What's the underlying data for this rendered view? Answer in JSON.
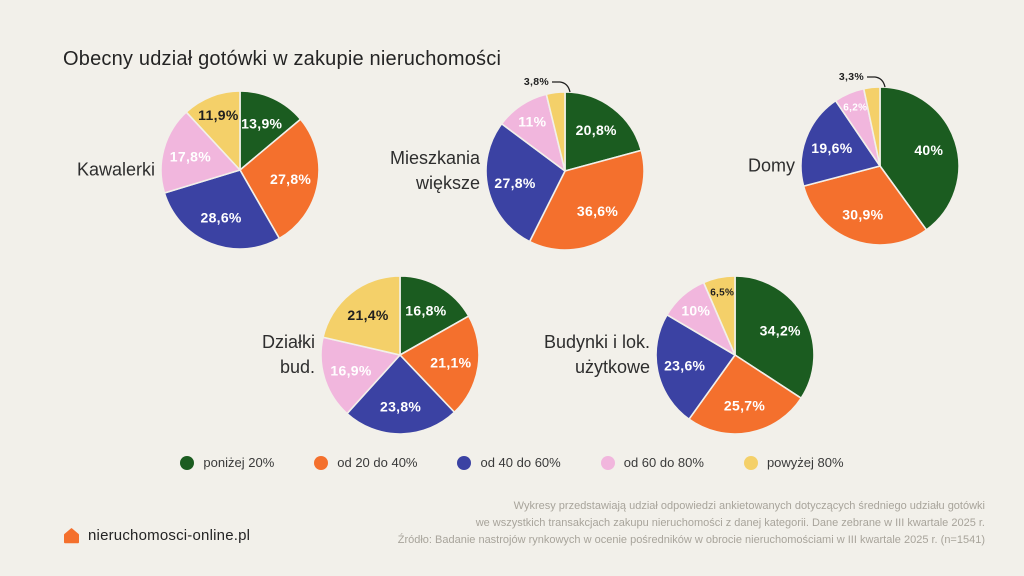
{
  "title": "Obecny udział gotówki w zakupie nieruchomości",
  "colors": {
    "background": "#F2F0EA",
    "text_dark": "#1F1F1F",
    "label_on_dark": "#FFFFFF",
    "brand_orange": "#F4702D"
  },
  "chart_data": {
    "type": "pie",
    "title": "Obecny udział gotówki w zakupie nieruchomości",
    "unit": "%",
    "legend_position": "bottom",
    "categories": [
      "poniżej 20%",
      "od 20 do 40%",
      "od 40 do 60%",
      "od 60 do 80%",
      "powyżej 80%"
    ],
    "category_colors": [
      "#1B5C20",
      "#F4702D",
      "#3B42A3",
      "#F1B6DD",
      "#F4D069"
    ],
    "charts": [
      {
        "name": "Kawalerki",
        "name_lines": [
          "Kawalerki"
        ],
        "values": [
          13.9,
          27.8,
          28.6,
          17.8,
          11.9
        ],
        "display_labels": [
          "13,9%",
          "27,8%",
          "28,6%",
          "17,8%",
          "11,9%"
        ]
      },
      {
        "name": "Mieszkania większe",
        "name_lines": [
          "Mieszkania",
          "większe"
        ],
        "values": [
          20.8,
          36.6,
          27.8,
          11,
          3.8
        ],
        "display_labels": [
          "20,8%",
          "36,6%",
          "27,8%",
          "11%",
          "3,8%"
        ]
      },
      {
        "name": "Domy",
        "name_lines": [
          "Domy"
        ],
        "values": [
          40,
          30.9,
          19.6,
          6.2,
          3.3
        ],
        "display_labels": [
          "40%",
          "30,9%",
          "19,6%",
          "6,2%",
          "3,3%"
        ]
      },
      {
        "name": "Działki bud.",
        "name_lines": [
          "Działki",
          "bud."
        ],
        "values": [
          16.8,
          21.1,
          23.8,
          16.9,
          21.4
        ],
        "display_labels": [
          "16,8%",
          "21,1%",
          "23,8%",
          "16,9%",
          "21,4%"
        ]
      },
      {
        "name": "Budynki i lok. użytkowe",
        "name_lines": [
          "Budynki i lok.",
          "użytkowe"
        ],
        "values": [
          34.2,
          25.7,
          23.6,
          10,
          6.5
        ],
        "display_labels": [
          "34,2%",
          "25,7%",
          "23,6%",
          "10%",
          "6,5%"
        ]
      }
    ]
  },
  "footer": {
    "lines": [
      "Wykresy przedstawiają udział odpowiedzi ankietowanych dotyczących średniego udziału gotówki",
      "we wszystkich transakcjach zakupu nieruchomości z danej kategorii. Dane zebrane w III kwartale 2025 r.",
      "Źródło: Badanie nastrojów rynkowych w ocenie pośredników w obrocie nieruchomościami w III kwartale 2025 r. (n=1541)"
    ],
    "logo_text": "nieruchomosci-online.pl"
  }
}
